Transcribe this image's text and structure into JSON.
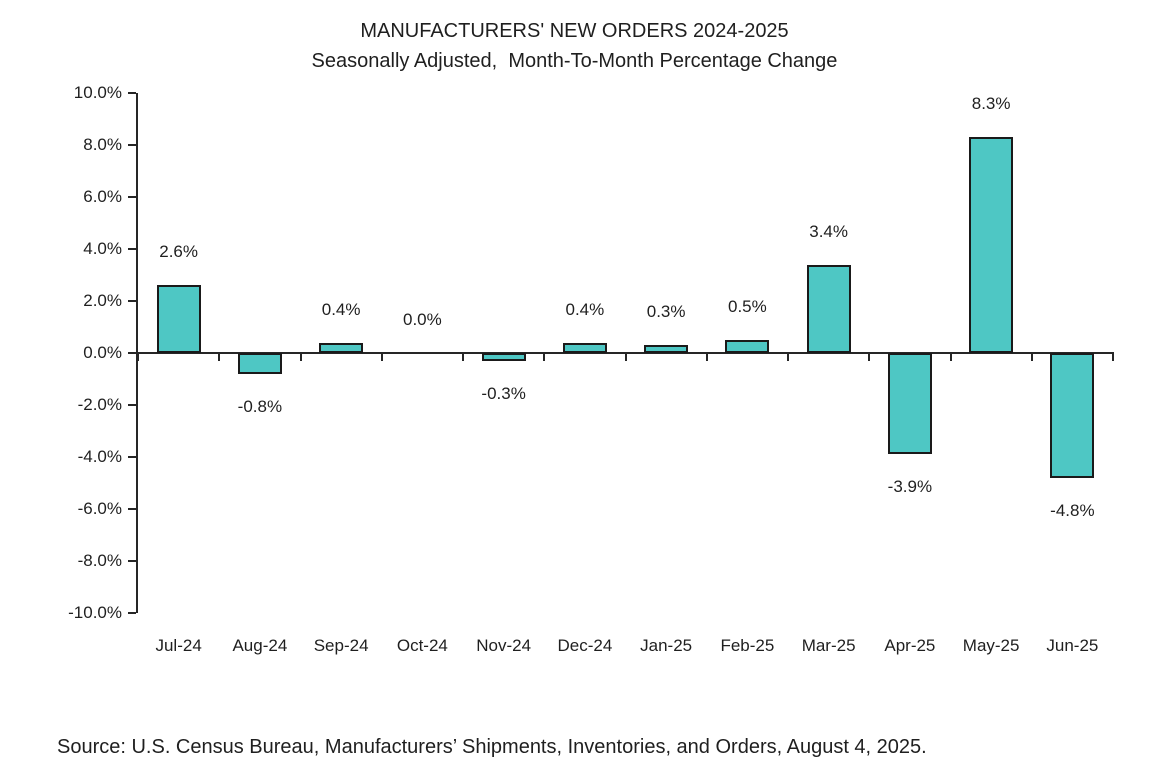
{
  "chart_data": {
    "type": "bar",
    "title": "MANUFACTURERS' NEW ORDERS 2024-2025",
    "subtitle": "Seasonally Adjusted,  Month-To-Month Percentage Change",
    "categories": [
      "Jul-24",
      "Aug-24",
      "Sep-24",
      "Oct-24",
      "Nov-24",
      "Dec-24",
      "Jan-25",
      "Feb-25",
      "Mar-25",
      "Apr-25",
      "May-25",
      "Jun-25"
    ],
    "values": [
      2.6,
      -0.8,
      0.4,
      0.0,
      -0.3,
      0.4,
      0.3,
      0.5,
      3.4,
      -3.9,
      8.3,
      -4.8
    ],
    "data_labels": [
      "2.6%",
      "-0.8%",
      "0.4%",
      "0.0%",
      "-0.3%",
      "0.4%",
      "0.3%",
      "0.5%",
      "3.4%",
      "-3.9%",
      "8.3%",
      "-4.8%"
    ],
    "xlabel": "",
    "ylabel": "",
    "ylim": [
      -10,
      10
    ],
    "y_tick_step": 2,
    "y_tick_labels": [
      "10.0%",
      "8.0%",
      "6.0%",
      "4.0%",
      "2.0%",
      "0.0%",
      "-2.0%",
      "-4.0%",
      "-6.0%",
      "-8.0%",
      "-10.0%"
    ],
    "grid": false,
    "legend": "none",
    "bar_color": "#4EC7C4",
    "bar_border_color": "#1A1A1A",
    "axis_color": "#262626",
    "text_color": "#1F1F1F"
  },
  "source_note": "Source: U.S. Census Bureau, Manufacturers’ Shipments, Inventories, and Orders, August 4, 2025."
}
